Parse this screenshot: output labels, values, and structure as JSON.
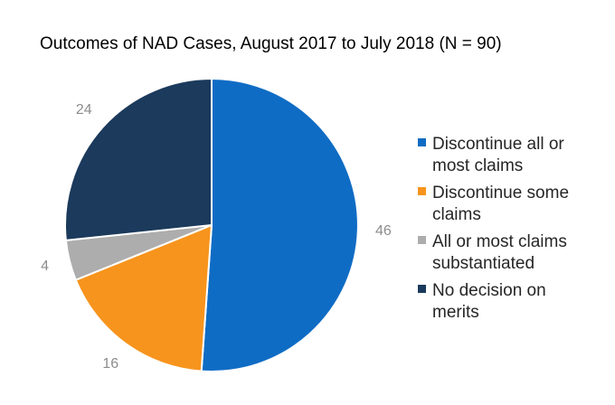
{
  "chart_data": {
    "type": "pie",
    "title": "Outcomes of NAD Cases, August 2017 to July 2018 (N = 90)",
    "categories": [
      "Discontinue all or most claims",
      "Discontinue some claims",
      "All or most claims substantiated",
      "No decision on merits"
    ],
    "values": [
      46,
      16,
      4,
      24
    ],
    "data_labels": [
      "46",
      "16",
      "4",
      "24"
    ],
    "legend_lines": [
      [
        "Discontinue all or",
        "most claims"
      ],
      [
        "Discontinue some",
        "claims"
      ],
      [
        "All or most claims",
        "substantiated"
      ],
      [
        "No decision on",
        "merits"
      ]
    ],
    "colors": [
      "#0f6cc4",
      "#f7941d",
      "#adadad",
      "#1b3a5c"
    ],
    "legend_position": "right",
    "start_angle": "12 o'clock",
    "direction": "clockwise"
  }
}
